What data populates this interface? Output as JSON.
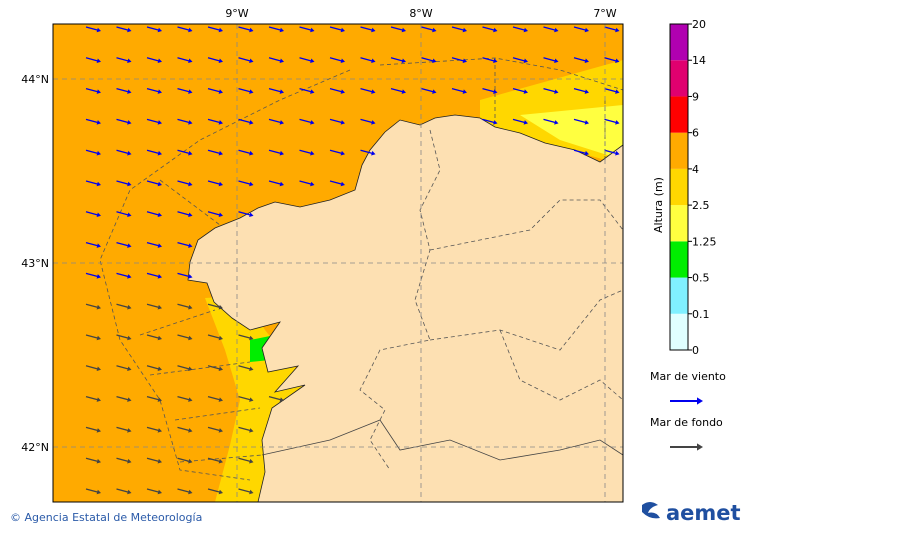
{
  "map": {
    "lon_labels": [
      "9°W",
      "8°W",
      "7°W"
    ],
    "lat_labels": [
      "44°N",
      "43°N",
      "42°N"
    ]
  },
  "colorbar": {
    "label": "Altura (m)",
    "ticks": [
      "0",
      "0.1",
      "0.5",
      "1.25",
      "2.5",
      "4",
      "6",
      "9",
      "14",
      "20"
    ],
    "colors": [
      "#e0ffff",
      "#80f0ff",
      "#00ee00",
      "#ffff40",
      "#ffd700",
      "#ffaa00",
      "#ff0000",
      "#e0006f",
      "#b000b0"
    ]
  },
  "legend": [
    {
      "label": "Mar de viento",
      "color": "#0000ee"
    },
    {
      "label": "Mar de fondo",
      "color": "#444444"
    }
  ],
  "footer": {
    "credit": "© Agencia Estatal de Meteorología",
    "logo": "aemet"
  }
}
